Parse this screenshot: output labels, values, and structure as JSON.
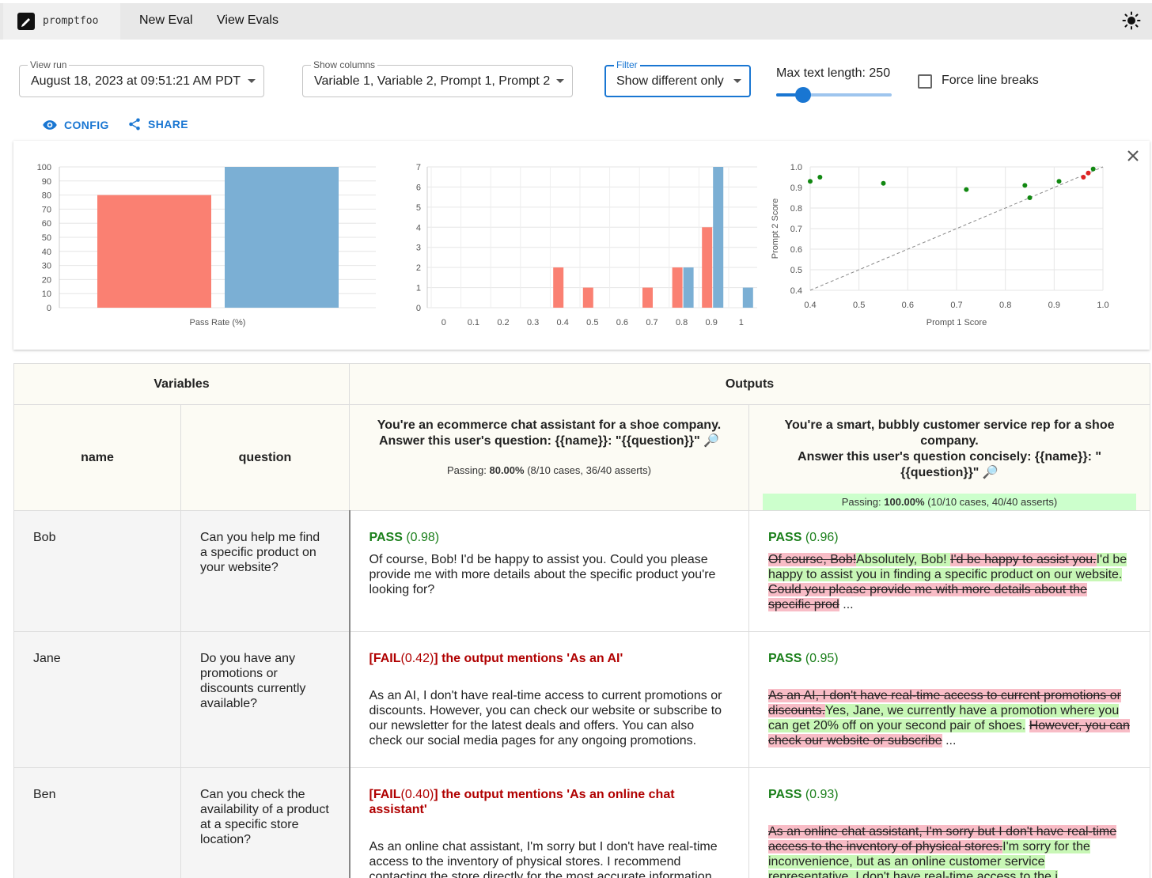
{
  "app": {
    "logo_text": "promptfoo",
    "nav": [
      "New Eval",
      "View Evals"
    ]
  },
  "controls": {
    "view_run": {
      "label": "View run",
      "value": "August 18, 2023 at 09:51:21 AM PDT"
    },
    "show_columns": {
      "label": "Show columns",
      "value": "Variable 1, Variable 2, Prompt 1, Prompt 2"
    },
    "filter": {
      "label": "Filter",
      "value": "Show different only"
    },
    "max_text": {
      "label": "Max text length: 250",
      "value": 250
    },
    "force_line_breaks": {
      "label": "Force line breaks",
      "checked": false
    },
    "config_label": "CONFIG",
    "share_label": "SHARE"
  },
  "colors": {
    "series1": "#fa8072",
    "series2": "#7bafd4",
    "accent": "#1976d2",
    "pass": "#1a7f1a",
    "fail": "#b00000"
  },
  "chart_data": [
    {
      "type": "bar",
      "categories": [
        "Pass Rate (%)"
      ],
      "series": [
        {
          "values": [
            80
          ]
        },
        {
          "values": [
            100
          ]
        }
      ],
      "xlabel": "Pass Rate (%)",
      "ylim": [
        0,
        100
      ],
      "yticks": [
        "0",
        "10",
        "20",
        "30",
        "40",
        "50",
        "60",
        "70",
        "80",
        "90",
        "100"
      ]
    },
    {
      "type": "bar",
      "categories": [
        "0",
        "0.1",
        "0.2",
        "0.3",
        "0.4",
        "0.5",
        "0.6",
        "0.7",
        "0.8",
        "0.9",
        "1"
      ],
      "series": [
        {
          "values": [
            0,
            0,
            0,
            0,
            2,
            1,
            0,
            1,
            2,
            4,
            0
          ]
        },
        {
          "values": [
            0,
            0,
            0,
            0,
            0,
            0,
            0,
            0,
            2,
            7,
            1
          ]
        }
      ],
      "ylim": [
        0,
        7
      ],
      "yticks": [
        "0",
        "1",
        "2",
        "3",
        "4",
        "5",
        "6",
        "7"
      ]
    },
    {
      "type": "scatter",
      "xlabel": "Prompt 1 Score",
      "ylabel": "Prompt 2 Score",
      "xlim": [
        0.4,
        1.0
      ],
      "ylim": [
        0.4,
        1.0
      ],
      "xticks": [
        "0.4",
        "0.5",
        "0.6",
        "0.7",
        "0.8",
        "0.9",
        "1.0"
      ],
      "yticks": [
        "0.4",
        "0.5",
        "0.6",
        "0.7",
        "0.8",
        "0.9",
        "1.0"
      ],
      "points_green": [
        [
          0.4,
          0.93
        ],
        [
          0.42,
          0.95
        ],
        [
          0.55,
          0.92
        ],
        [
          0.72,
          0.89
        ],
        [
          0.84,
          0.91
        ],
        [
          0.85,
          0.85
        ],
        [
          0.91,
          0.93
        ],
        [
          0.98,
          0.99
        ]
      ],
      "points_red": [
        [
          0.97,
          0.97
        ],
        [
          0.96,
          0.95
        ]
      ]
    }
  ],
  "table": {
    "header_variables": "Variables",
    "header_outputs": "Outputs",
    "col_name": "name",
    "col_question": "question",
    "prompt1": {
      "line1": "You're an ecommerce chat assistant for a shoe company.",
      "line2": "Answer this user's question: {{name}}: \"{{question}}\"",
      "passing_prefix": "Passing: ",
      "passing_pct": "80.00%",
      "passing_rest": " (8/10 cases, 36/40 asserts)"
    },
    "prompt2": {
      "line1": "You're a smart, bubbly customer service rep for a shoe company.",
      "line2": "Answer this user's question concisely: {{name}}: \"{{question}}\"",
      "passing_prefix": "Passing: ",
      "passing_pct": "100.00%",
      "passing_rest": " (10/10 cases, 40/40 asserts)"
    },
    "rows": [
      {
        "name": "Bob",
        "question": "Can you help me find a specific product on your website?",
        "out1": {
          "status": "PASS",
          "score": " (0.98)",
          "text": "Of course, Bob! I'd be happy to assist you. Could you please provide me with more details about the specific product you're looking for?"
        },
        "out2": {
          "status": "PASS",
          "score": " (0.96)",
          "del1": "Of course, Bob!",
          "ins1": "Absolutely, Bob! ",
          "del2": "I'd be happy to assist you.",
          "ins2": "I'd be happy to assist you in finding a specific product on our website.",
          "del3": "Could you please provide me with more details about the specific prod",
          "tail": " ..."
        }
      },
      {
        "name": "Jane",
        "question": "Do you have any promotions or discounts currently available?",
        "out1": {
          "fail_open": "[FAIL",
          "score": "(0.42)",
          "fail_close": "] the output mentions 'As an AI'",
          "text": "As an AI, I don't have real-time access to current promotions or discounts. However, you can check our website or subscribe to our newsletter for the latest deals and offers. You can also check our social media pages for any ongoing promotions."
        },
        "out2": {
          "status": "PASS",
          "score": " (0.95)",
          "del1": "As an AI, I don't have real-time access to current promotions or discounts.",
          "ins1": "Yes, Jane, we currently have a promotion where you can get 20% off on your second pair of shoes.",
          "del2": "However, you can check our website or subscribe",
          "tail": " ..."
        }
      },
      {
        "name": "Ben",
        "question": "Can you check the availability of a product at a specific store location?",
        "out1": {
          "fail_open": "[FAIL",
          "score": "(0.40)",
          "fail_close": "] the output mentions 'As an online chat assistant'",
          "text": "As an online chat assistant, I'm sorry but I don't have real-time access to the inventory of physical stores. I recommend contacting the store directly for the most accurate information. However, I can certainly help you check the availability of ..."
        },
        "out2": {
          "status": "PASS",
          "score": " (0.93)",
          "del1": "As an online chat assistant, I'm sorry but I don't have real-time access to the inventory of physical stores.",
          "ins1": "I'm sorry for the inconvenience, but as an online customer service representative, I don't have real-time access to the i",
          "tail": " ..."
        }
      }
    ]
  }
}
